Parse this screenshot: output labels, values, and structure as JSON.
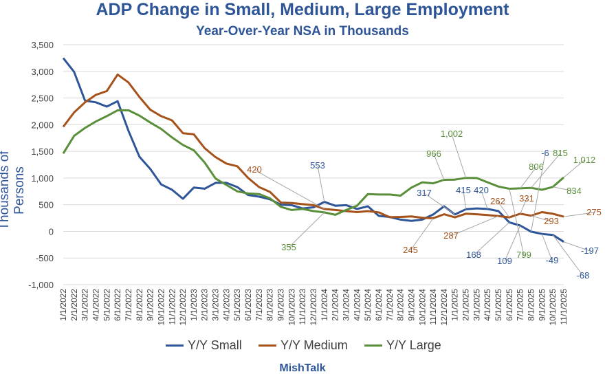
{
  "colors": {
    "title": "#2e5597",
    "small": "#2e5597",
    "medium": "#a5511a",
    "large": "#5a8f3a",
    "grid": "#d9d9d9",
    "axis_text": "#404040",
    "leader": "#a6a6a6"
  },
  "footer": "MishTalk",
  "chart_data": {
    "type": "line",
    "title": "ADP Change in Small, Medium, Large Employment",
    "subtitle": "Year-Over-Year NSA in Thousands",
    "ylabel": "Thousands of Persons",
    "xlabel": "",
    "ylim": [
      -1000,
      3500
    ],
    "ytick_step": 500,
    "yticks": [
      "-1,000",
      "-500",
      "0",
      "500",
      "1,000",
      "1,500",
      "2,000",
      "2,500",
      "3,000",
      "3,500"
    ],
    "grid": true,
    "legend_position": "bottom",
    "x_tick_labels": [
      "1/1/2022",
      "2/1/2022",
      "3/1/2022",
      "4/1/2022",
      "5/1/2022",
      "6/1/2022",
      "7/1/2022",
      "8/1/2022",
      "9/1/2022",
      "10/1/2022",
      "11/1/2022",
      "12/1/2022",
      "1/1/2023",
      "2/1/2023",
      "3/1/2023",
      "4/1/2023",
      "5/1/2023",
      "6/1/2023",
      "7/1/2023",
      "8/1/2023",
      "9/1/2023",
      "10/1/2023",
      "11/1/2023",
      "12/1/2023",
      "1/1/2024",
      "2/1/2024",
      "3/1/2024",
      "4/1/2024",
      "5/1/2024",
      "6/1/2024",
      "7/1/2024",
      "8/1/2024",
      "9/1/2024",
      "10/1/2024",
      "11/1/2024",
      "12/1/2024",
      "1/1/2025",
      "2/1/2025",
      "3/1/2025",
      "4/1/2025",
      "5/1/2025",
      "6/1/2025",
      "7/1/2025",
      "8/1/2025",
      "9/1/2025",
      "10/1/2025",
      "11/1/2025"
    ],
    "series": [
      {
        "name": "Y/Y Small",
        "color": "#2e5597",
        "values": [
          3250,
          2990,
          2450,
          2420,
          2340,
          2440,
          1880,
          1400,
          1170,
          880,
          780,
          610,
          820,
          800,
          910,
          910,
          830,
          680,
          650,
          600,
          500,
          490,
          430,
          450,
          553,
          480,
          490,
          420,
          470,
          290,
          270,
          220,
          195,
          220,
          317,
          470,
          317,
          415,
          430,
          420,
          380,
          168,
          109,
          -6,
          -49,
          -68,
          -197
        ]
      },
      {
        "name": "Y/Y Medium",
        "color": "#a5511a",
        "values": [
          1960,
          2230,
          2420,
          2560,
          2630,
          2940,
          2790,
          2520,
          2280,
          2160,
          2080,
          1840,
          1820,
          1560,
          1390,
          1270,
          1220,
          1000,
          830,
          740,
          540,
          530,
          510,
          490,
          420,
          400,
          380,
          360,
          380,
          355,
          265,
          270,
          280,
          255,
          245,
          320,
          262,
          331,
          320,
          305,
          287,
          262,
          331,
          293,
          360,
          330,
          275
        ]
      },
      {
        "name": "Y/Y Large",
        "color": "#5a8f3a",
        "values": [
          1460,
          1790,
          1940,
          2060,
          2160,
          2270,
          2270,
          2170,
          2040,
          1920,
          1760,
          1620,
          1520,
          1290,
          990,
          870,
          750,
          710,
          700,
          620,
          460,
          400,
          420,
          380,
          355,
          310,
          400,
          480,
          700,
          690,
          690,
          670,
          820,
          920,
          900,
          966,
          970,
          1002,
          1000,
          920,
          840,
          799,
          806,
          815,
          780,
          834,
          1012
        ]
      }
    ],
    "annotations": [
      {
        "series": "Y/Y Medium",
        "index": 24,
        "text": "420"
      },
      {
        "series": "Y/Y Small",
        "index": 24,
        "text": "553"
      },
      {
        "series": "Y/Y Large",
        "index": 24,
        "text": "355"
      },
      {
        "series": "Y/Y Small",
        "index": 36,
        "text": "317"
      },
      {
        "series": "Y/Y Medium",
        "index": 34,
        "text": "245"
      },
      {
        "series": "Y/Y Large",
        "index": 35,
        "text": "966"
      },
      {
        "series": "Y/Y Large",
        "index": 37,
        "text": "1,002"
      },
      {
        "series": "Y/Y Small",
        "index": 37,
        "text": "415"
      },
      {
        "series": "Y/Y Small",
        "index": 39,
        "text": "420"
      },
      {
        "series": "Y/Y Medium",
        "index": 40,
        "text": "287"
      },
      {
        "series": "Y/Y Medium",
        "index": 41,
        "text": "262"
      },
      {
        "series": "Y/Y Medium",
        "index": 42,
        "text": "331"
      },
      {
        "series": "Y/Y Small",
        "index": 41,
        "text": "168"
      },
      {
        "series": "Y/Y Small",
        "index": 42,
        "text": "109"
      },
      {
        "series": "Y/Y Large",
        "index": 41,
        "text": "799"
      },
      {
        "series": "Y/Y Large",
        "index": 42,
        "text": "806"
      },
      {
        "series": "Y/Y Small",
        "index": 43,
        "text": "-6"
      },
      {
        "series": "Y/Y Medium",
        "index": 43,
        "text": "293"
      },
      {
        "series": "Y/Y Small",
        "index": 44,
        "text": "-49"
      },
      {
        "series": "Y/Y Large",
        "index": 43,
        "text": "815"
      },
      {
        "series": "Y/Y Large",
        "index": 45,
        "text": "834"
      },
      {
        "series": "Y/Y Small",
        "index": 45,
        "text": "-68"
      },
      {
        "series": "Y/Y Small",
        "index": 46,
        "text": "-197"
      },
      {
        "series": "Y/Y Medium",
        "index": 46,
        "text": "275"
      },
      {
        "series": "Y/Y Large",
        "index": 46,
        "text": "1,012"
      }
    ]
  }
}
